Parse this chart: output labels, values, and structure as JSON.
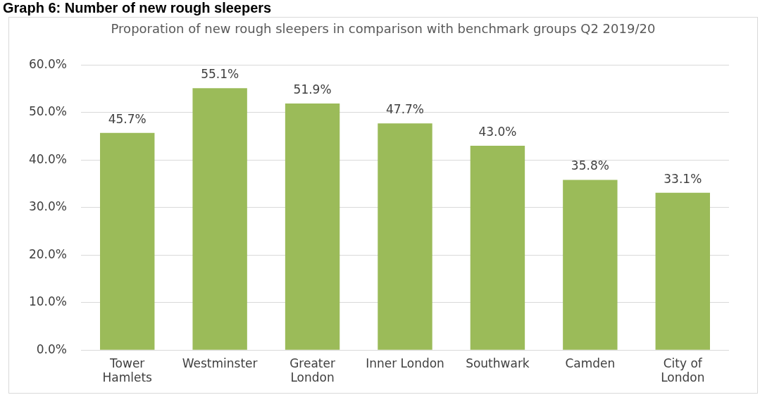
{
  "chart_data": {
    "type": "bar",
    "title": "Graph 6: Number of new rough sleepers",
    "subtitle": "Proporation of new rough sleepers in comparison with benchmark groups Q2 2019/20",
    "categories": [
      "Tower Hamlets",
      "Westminster",
      "Greater London",
      "Inner London",
      "Southwark",
      "Camden",
      "City of London"
    ],
    "values": [
      45.7,
      55.1,
      51.9,
      47.7,
      43.0,
      35.8,
      33.1
    ],
    "value_labels": [
      "45.7%",
      "55.1%",
      "51.9%",
      "47.7%",
      "43.0%",
      "35.8%",
      "33.1%"
    ],
    "color": "#9bbb59",
    "ylim": [
      0,
      60
    ],
    "yticks": [
      {
        "value": 0,
        "label": "0.0%"
      },
      {
        "value": 10,
        "label": "10.0%"
      },
      {
        "value": 20,
        "label": "20.0%"
      },
      {
        "value": 30,
        "label": "30.0%"
      },
      {
        "value": 40,
        "label": "40.0%"
      },
      {
        "value": 50,
        "label": "50.0%"
      },
      {
        "value": 60,
        "label": "60.0%"
      }
    ],
    "grid": "y",
    "legend": false
  }
}
